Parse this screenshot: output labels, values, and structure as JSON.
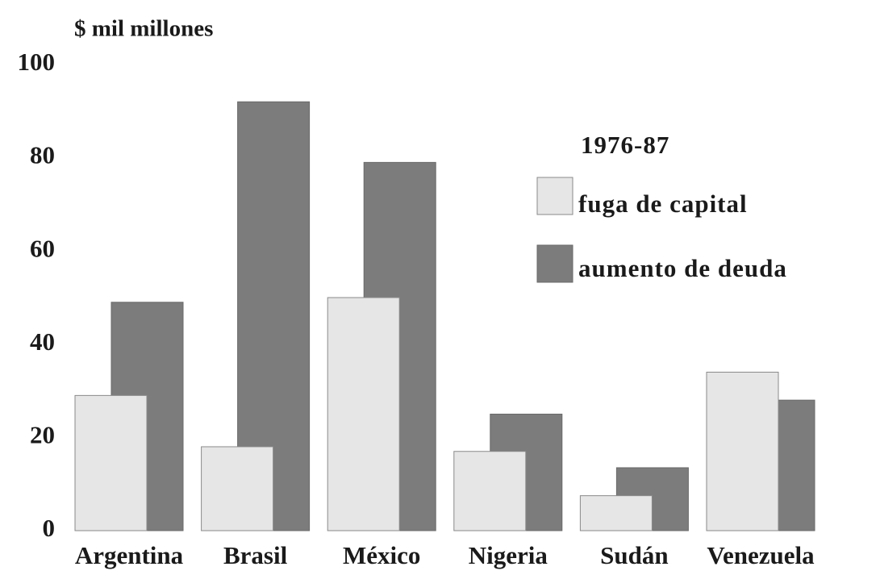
{
  "chart_data": {
    "type": "bar",
    "y_label": "$ mil millones",
    "legend_title": "1976-87",
    "categories": [
      "Argentina",
      "Brasil",
      "México",
      "Nigeria",
      "Sudán",
      "Venezuela"
    ],
    "series": [
      {
        "name": "fuga de capital",
        "color": "#e6e6e6",
        "values": [
          29,
          18,
          50,
          17,
          7.5,
          34
        ]
      },
      {
        "name": "aumento de deuda",
        "color": "#7c7c7c",
        "values": [
          49,
          92,
          79,
          25,
          13.5,
          28
        ]
      }
    ],
    "ylim": [
      0,
      100
    ],
    "yticks": [
      0,
      20,
      40,
      60,
      80,
      100
    ],
    "grid": false,
    "legend": "upper right"
  }
}
